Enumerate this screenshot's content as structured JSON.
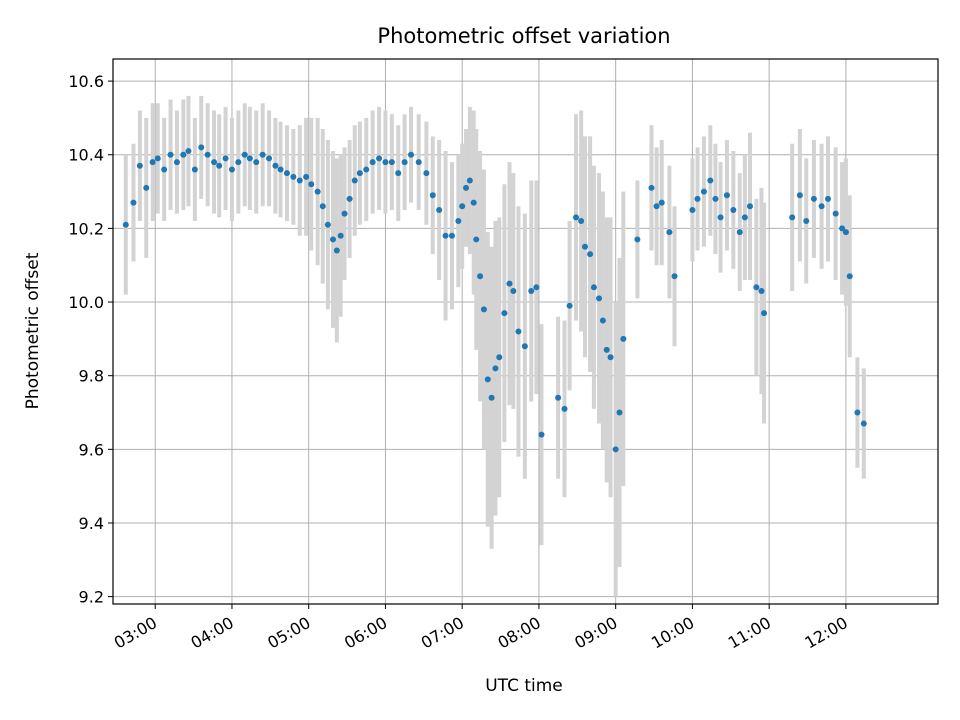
{
  "chart_data": {
    "type": "scatter",
    "title": "Photometric offset variation",
    "xlabel": "UTC time",
    "ylabel": "Photometric offset",
    "x_ticks": [
      "03:00",
      "04:00",
      "05:00",
      "06:00",
      "07:00",
      "08:00",
      "09:00",
      "10:00",
      "11:00",
      "12:00"
    ],
    "y_ticks": [
      "9.2",
      "9.4",
      "9.6",
      "9.8",
      "10.0",
      "10.2",
      "10.4",
      "10.6"
    ],
    "xlim": [
      "02:27",
      "13:12"
    ],
    "ylim": [
      9.18,
      10.66
    ],
    "grid": true,
    "marker_color": "#1f77b4",
    "errorbar_color": "#d3d3d3",
    "series": [
      {
        "x": [
          "02:37",
          "02:43",
          "02:48",
          "02:53",
          "02:58",
          "03:02",
          "03:07",
          "03:12",
          "03:17",
          "03:22",
          "03:26",
          "03:31",
          "03:36",
          "03:41",
          "03:46",
          "03:50",
          "03:55",
          "04:00",
          "04:05",
          "04:10",
          "04:14",
          "04:19",
          "04:24",
          "04:29",
          "04:34",
          "04:38",
          "04:43",
          "04:48",
          "04:53",
          "04:58",
          "05:02",
          "05:07",
          "05:11",
          "05:15",
          "05:19",
          "05:22",
          "05:25",
          "05:28",
          "05:32",
          "05:36",
          "05:40",
          "05:45",
          "05:50",
          "05:55",
          "06:00",
          "06:05",
          "06:10",
          "06:15",
          "06:20",
          "06:26",
          "06:32",
          "06:37",
          "06:42",
          "06:47",
          "06:52",
          "06:57",
          "07:00",
          "07:03",
          "07:06",
          "07:09",
          "07:11",
          "07:14",
          "07:17",
          "07:20",
          "07:23",
          "07:26",
          "07:29",
          "07:33",
          "07:37",
          "07:40",
          "07:44",
          "07:49",
          "07:54",
          "07:58",
          "08:02",
          "08:15",
          "08:20",
          "08:24",
          "08:29",
          "08:33",
          "08:36",
          "08:40",
          "08:43",
          "08:47",
          "08:50",
          "08:53",
          "08:56",
          "09:00",
          "09:03",
          "09:06",
          "09:17",
          "09:28",
          "09:32",
          "09:36",
          "09:42",
          "09:46",
          "10:00",
          "10:04",
          "10:09",
          "10:14",
          "10:18",
          "10:22",
          "10:27",
          "10:32",
          "10:37",
          "10:41",
          "10:45",
          "10:50",
          "10:54",
          "10:56",
          "11:18",
          "11:24",
          "11:29",
          "11:35",
          "11:41",
          "11:46",
          "11:52",
          "11:57",
          "12:00",
          "12:03",
          "12:09",
          "12:14"
        ],
        "y": [
          10.21,
          10.27,
          10.37,
          10.31,
          10.38,
          10.39,
          10.36,
          10.4,
          10.38,
          10.4,
          10.41,
          10.36,
          10.42,
          10.4,
          10.38,
          10.37,
          10.39,
          10.36,
          10.38,
          10.4,
          10.39,
          10.38,
          10.4,
          10.39,
          10.37,
          10.36,
          10.35,
          10.34,
          10.33,
          10.34,
          10.32,
          10.3,
          10.26,
          10.21,
          10.17,
          10.14,
          10.18,
          10.24,
          10.28,
          10.33,
          10.35,
          10.36,
          10.38,
          10.39,
          10.38,
          10.38,
          10.35,
          10.38,
          10.4,
          10.38,
          10.35,
          10.29,
          10.25,
          10.18,
          10.18,
          10.22,
          10.26,
          10.31,
          10.33,
          10.27,
          10.17,
          10.07,
          9.98,
          9.79,
          9.74,
          9.82,
          9.85,
          9.97,
          10.05,
          10.03,
          9.92,
          9.88,
          10.03,
          10.04,
          9.64,
          9.74,
          9.71,
          9.99,
          10.23,
          10.22,
          10.15,
          10.13,
          10.04,
          10.01,
          9.95,
          9.87,
          9.85,
          9.6,
          9.7,
          9.9,
          10.17,
          10.31,
          10.26,
          10.27,
          10.19,
          10.07,
          10.25,
          10.28,
          10.3,
          10.33,
          10.28,
          10.23,
          10.29,
          10.25,
          10.19,
          10.23,
          10.26,
          10.04,
          10.03,
          9.97,
          10.23,
          10.29,
          10.22,
          10.28,
          10.26,
          10.28,
          10.24,
          10.2,
          10.19,
          10.07,
          9.7,
          9.67
        ],
        "err": [
          0.19,
          0.16,
          0.15,
          0.19,
          0.16,
          0.15,
          0.14,
          0.15,
          0.14,
          0.15,
          0.15,
          0.14,
          0.14,
          0.14,
          0.14,
          0.14,
          0.14,
          0.14,
          0.14,
          0.14,
          0.14,
          0.14,
          0.14,
          0.13,
          0.13,
          0.13,
          0.13,
          0.13,
          0.15,
          0.16,
          0.18,
          0.2,
          0.21,
          0.23,
          0.24,
          0.25,
          0.22,
          0.18,
          0.16,
          0.15,
          0.14,
          0.14,
          0.14,
          0.14,
          0.14,
          0.13,
          0.13,
          0.13,
          0.13,
          0.13,
          0.14,
          0.16,
          0.19,
          0.23,
          0.2,
          0.18,
          0.17,
          0.16,
          0.2,
          0.25,
          0.3,
          0.34,
          0.38,
          0.4,
          0.41,
          0.4,
          0.38,
          0.35,
          0.33,
          0.32,
          0.34,
          0.36,
          0.3,
          0.29,
          0.3,
          0.22,
          0.24,
          0.23,
          0.28,
          0.3,
          0.3,
          0.32,
          0.33,
          0.34,
          0.35,
          0.36,
          0.38,
          0.4,
          0.42,
          0.4,
          0.16,
          0.17,
          0.16,
          0.17,
          0.18,
          0.19,
          0.14,
          0.14,
          0.15,
          0.15,
          0.15,
          0.15,
          0.15,
          0.16,
          0.16,
          0.17,
          0.2,
          0.24,
          0.28,
          0.3,
          0.2,
          0.18,
          0.17,
          0.16,
          0.17,
          0.17,
          0.18,
          0.18,
          0.2,
          0.22,
          0.15,
          0.15
        ]
      }
    ]
  }
}
